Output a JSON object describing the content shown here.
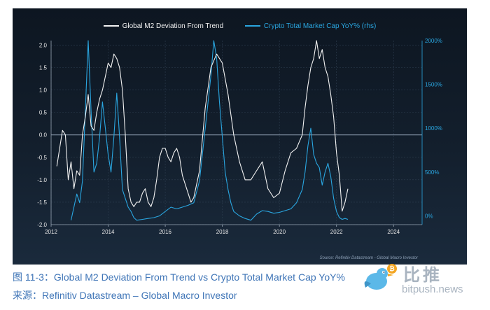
{
  "chart_data": {
    "type": "line",
    "series": [
      {
        "name": "Global M2 Deviation From Trend",
        "axis": "left",
        "color": "#f2f2f2",
        "x": [
          2012.2,
          2012.3,
          2012.4,
          2012.5,
          2012.6,
          2012.7,
          2012.8,
          2012.9,
          2013.0,
          2013.1,
          2013.2,
          2013.3,
          2013.4,
          2013.5,
          2013.6,
          2013.7,
          2013.8,
          2013.9,
          2014.0,
          2014.1,
          2014.2,
          2014.3,
          2014.4,
          2014.5,
          2014.6,
          2014.7,
          2014.8,
          2014.9,
          2015.0,
          2015.1,
          2015.2,
          2015.3,
          2015.4,
          2015.5,
          2015.6,
          2015.7,
          2015.8,
          2015.9,
          2016.0,
          2016.1,
          2016.2,
          2016.3,
          2016.4,
          2016.5,
          2016.6,
          2016.7,
          2016.8,
          2016.9,
          2017.0,
          2017.2,
          2017.4,
          2017.6,
          2017.8,
          2018.0,
          2018.2,
          2018.4,
          2018.6,
          2018.8,
          2019.0,
          2019.2,
          2019.4,
          2019.6,
          2019.8,
          2020.0,
          2020.2,
          2020.4,
          2020.6,
          2020.8,
          2020.9,
          2021.0,
          2021.1,
          2021.2,
          2021.3,
          2021.4,
          2021.5,
          2021.6,
          2021.7,
          2021.8,
          2021.9,
          2022.0,
          2022.1,
          2022.2,
          2022.3,
          2022.4
        ],
        "y": [
          -0.7,
          -0.3,
          0.1,
          0.0,
          -1.0,
          -0.6,
          -1.2,
          -0.8,
          -0.9,
          0.0,
          0.4,
          0.9,
          0.2,
          0.1,
          0.5,
          0.8,
          1.0,
          1.3,
          1.6,
          1.5,
          1.8,
          1.7,
          1.5,
          1.0,
          0.0,
          -1.2,
          -1.5,
          -1.6,
          -1.5,
          -1.5,
          -1.3,
          -1.2,
          -1.5,
          -1.6,
          -1.4,
          -1.0,
          -0.5,
          -0.3,
          -0.3,
          -0.5,
          -0.6,
          -0.4,
          -0.3,
          -0.5,
          -0.9,
          -1.1,
          -1.3,
          -1.5,
          -1.4,
          -0.8,
          0.6,
          1.5,
          1.8,
          1.6,
          0.9,
          0.0,
          -0.6,
          -1.0,
          -1.0,
          -0.8,
          -0.6,
          -1.2,
          -1.4,
          -1.3,
          -0.8,
          -0.4,
          -0.3,
          0.0,
          0.6,
          1.1,
          1.5,
          1.7,
          2.1,
          1.7,
          1.9,
          1.5,
          1.3,
          0.9,
          0.4,
          -0.4,
          -0.9,
          -1.7,
          -1.5,
          -1.2
        ]
      },
      {
        "name": "Crypto Total Market Cap YoY% (rhs)",
        "axis": "right",
        "color": "#2aa6e0",
        "x": [
          2012.7,
          2012.8,
          2012.9,
          2013.0,
          2013.1,
          2013.2,
          2013.3,
          2013.4,
          2013.5,
          2013.6,
          2013.7,
          2013.8,
          2013.9,
          2014.0,
          2014.1,
          2014.2,
          2014.3,
          2014.4,
          2014.5,
          2014.6,
          2014.7,
          2014.8,
          2014.9,
          2015.0,
          2015.2,
          2015.4,
          2015.6,
          2015.8,
          2016.0,
          2016.2,
          2016.4,
          2016.6,
          2016.8,
          2017.0,
          2017.2,
          2017.4,
          2017.6,
          2017.7,
          2017.8,
          2017.9,
          2018.0,
          2018.1,
          2018.2,
          2018.3,
          2018.4,
          2018.6,
          2018.8,
          2019.0,
          2019.2,
          2019.4,
          2019.6,
          2019.8,
          2020.0,
          2020.2,
          2020.4,
          2020.6,
          2020.8,
          2020.9,
          2021.0,
          2021.1,
          2021.2,
          2021.3,
          2021.4,
          2021.5,
          2021.6,
          2021.7,
          2021.8,
          2021.9,
          2022.0,
          2022.1,
          2022.2,
          2022.3,
          2022.4
        ],
        "y": [
          -50,
          100,
          250,
          150,
          400,
          1200,
          2000,
          1200,
          500,
          600,
          900,
          1300,
          1000,
          700,
          500,
          900,
          1400,
          900,
          300,
          200,
          100,
          50,
          -20,
          -50,
          -40,
          -30,
          -20,
          0,
          50,
          100,
          80,
          100,
          120,
          150,
          400,
          1000,
          1600,
          2000,
          1800,
          1300,
          900,
          500,
          300,
          150,
          50,
          0,
          -30,
          -50,
          20,
          60,
          50,
          30,
          40,
          60,
          80,
          150,
          300,
          500,
          800,
          1000,
          700,
          600,
          550,
          350,
          500,
          600,
          450,
          200,
          50,
          -20,
          -40,
          -30,
          -40
        ]
      }
    ],
    "left_axis": {
      "ylim": [
        -2.0,
        2.1
      ],
      "ticks": [
        -2.0,
        -1.5,
        -1.0,
        -0.5,
        0.0,
        0.5,
        1.0,
        1.5,
        2.0
      ],
      "tick_labels": [
        "-2.0",
        "-1.5",
        "-1.0",
        "-0.5",
        "0.0",
        "0.5",
        "1.0",
        "1.5",
        "2.0"
      ]
    },
    "right_axis": {
      "ylim": [
        -100,
        2000
      ],
      "ticks": [
        0,
        500,
        1000,
        1500,
        2000
      ],
      "tick_labels": [
        "0%",
        "500%",
        "1000%",
        "1500%",
        "2000%"
      ]
    },
    "x_axis": {
      "xlim": [
        2012,
        2025
      ],
      "ticks": [
        2012,
        2014,
        2016,
        2018,
        2020,
        2022,
        2024
      ],
      "tick_labels": [
        "2012",
        "2014",
        "2016",
        "2018",
        "2020",
        "2022",
        "2024"
      ]
    },
    "grid": true,
    "legend": "top-center",
    "source_note": "Source: Refinitiv Datastream - Global Macro Investor"
  },
  "colors": {
    "chart_background": "#131f2d",
    "left_axis_text": "#e6e6e6",
    "right_axis_text": "#2aa6e0",
    "caption_text": "#3f75b7"
  },
  "captions": {
    "figure_label": "图 11-3：Global M2 Deviation From Trend vs Crypto Total Market Cap YoY%",
    "source_line": "来源：Refinitiv Datastream – Global Macro Investor"
  },
  "watermark": {
    "brand_cn": "比推",
    "brand_url": "bitpush.news",
    "icon": "bird-with-bitcoin-logo"
  }
}
